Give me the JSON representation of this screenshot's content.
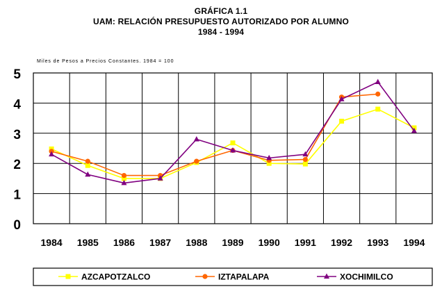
{
  "chart_data": {
    "type": "line",
    "title": "GRÁFICA 1.1",
    "subtitle": "UAM: RELACIÓN PRESUPUESTO AUTORIZADO POR ALUMNO",
    "period": "1984 - 1994",
    "units_note": "Miles de Pesos a Precios Constantes. 1984 = 100",
    "xlabel": "",
    "ylabel": "",
    "ylim": [
      0,
      5
    ],
    "yticks": [
      "0",
      "1",
      "2",
      "3",
      "4",
      "5"
    ],
    "grid": true,
    "legend_position": "bottom",
    "categories": [
      "1984",
      "1985",
      "1986",
      "1987",
      "1988",
      "1989",
      "1990",
      "1991",
      "1992",
      "1993",
      "1994"
    ],
    "series": [
      {
        "name": "AZCAPOTZALCO",
        "color": "#ffff00",
        "marker": "square",
        "values": [
          2.48,
          1.93,
          1.5,
          1.5,
          2.03,
          2.68,
          2.0,
          1.98,
          3.4,
          3.8,
          3.18
        ]
      },
      {
        "name": "IZTAPALAPA",
        "color": "#ff6600",
        "marker": "circle",
        "values": [
          2.4,
          2.07,
          1.6,
          1.6,
          2.07,
          2.43,
          2.1,
          2.13,
          4.2,
          4.3,
          null
        ]
      },
      {
        "name": "XOCHIMILCO",
        "color": "#800080",
        "marker": "triangle",
        "values": [
          2.3,
          1.63,
          1.35,
          1.5,
          2.8,
          2.43,
          2.18,
          2.3,
          4.13,
          4.7,
          3.08
        ]
      }
    ]
  }
}
